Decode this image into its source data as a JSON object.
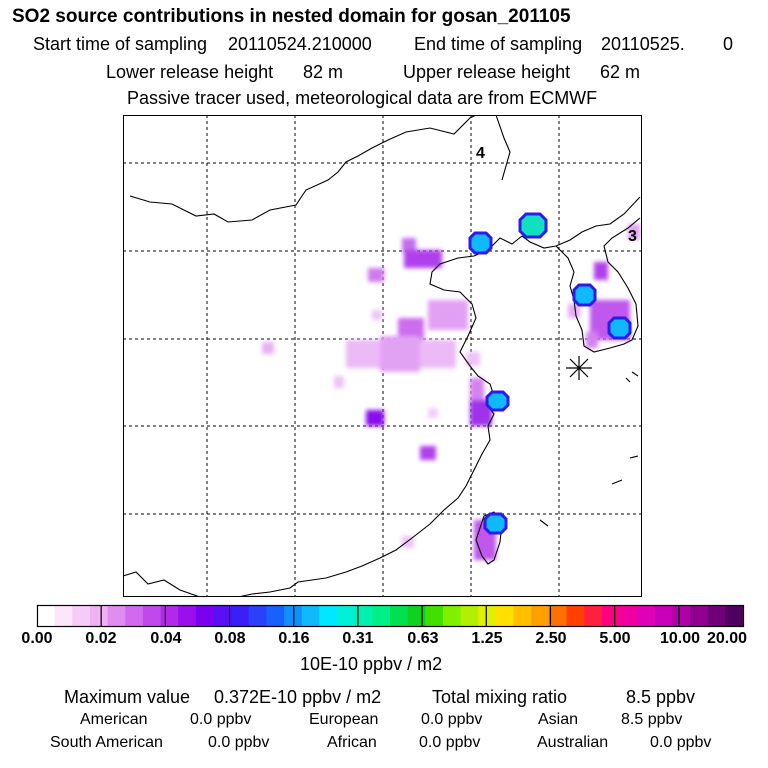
{
  "title": "SO2 source contributions in nested domain for gosan_201105",
  "sampling": {
    "start_label": "Start time of sampling",
    "start_value": "20110524.210000",
    "end_label": "End time of sampling",
    "end_value": "20110525.",
    "end_suffix": "0"
  },
  "release": {
    "lower_label": "Lower release height",
    "lower_value": "82 m",
    "upper_label": "Upper release height",
    "upper_value": "62 m"
  },
  "note": "Passive tracer used, meteorological data are from ECMWF",
  "map": {
    "markers": [
      "4",
      "3"
    ],
    "station_symbol": "star-marker"
  },
  "legend": {
    "ticks": [
      "0.00",
      "0.02",
      "0.04",
      "0.08",
      "0.16",
      "0.31",
      "0.63",
      "1.25",
      "2.50",
      "5.00",
      "10.00",
      "20.00"
    ],
    "colors": [
      "#ffffff",
      "#fbe6fb",
      "#f5ccf7",
      "#eeb2f4",
      "#e08cf0",
      "#d06aee",
      "#c048ec",
      "#b02ae8",
      "#9a10ec",
      "#7a00f0",
      "#5a10f4",
      "#3a20f8",
      "#2a40fa",
      "#1a60fc",
      "#1090fc",
      "#10b8fc",
      "#00e8ff",
      "#00f0d8",
      "#00f0b0",
      "#00f088",
      "#00e050",
      "#10d020",
      "#40e000",
      "#80f000",
      "#b0f000",
      "#e0f000",
      "#ffe000",
      "#ffc000",
      "#ffa000",
      "#ff7000",
      "#ff4000",
      "#ff2040",
      "#ff0080",
      "#f000a0",
      "#e000b8",
      "#c800b8",
      "#b000a8",
      "#900090",
      "#70007a",
      "#500060"
    ],
    "units": "10E-10 ppbv / m2"
  },
  "summary": {
    "max_label": "Maximum value",
    "max_value": "0.372E-10 ppbv / m2",
    "total_label": "Total mixing ratio",
    "total_value": "8.5 ppbv"
  },
  "regions": [
    {
      "name": "American",
      "value": "0.0 ppbv"
    },
    {
      "name": "European",
      "value": "0.0 ppbv"
    },
    {
      "name": "Asian",
      "value": "8.5 ppbv"
    },
    {
      "name": "South American",
      "value": "0.0 ppbv"
    },
    {
      "name": "African",
      "value": "0.0 ppbv"
    },
    {
      "name": "Australian",
      "value": "0.0 ppbv"
    }
  ]
}
